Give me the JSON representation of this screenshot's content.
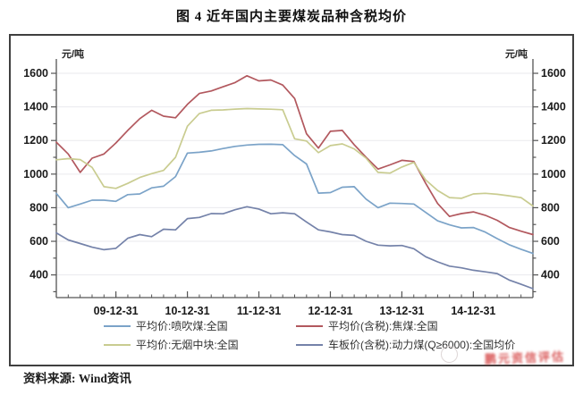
{
  "title": "图 4  近年国内主要煤炭品种含税均价",
  "source_note": "资料来源: Wind资讯",
  "watermark_text": "鹏元资信评估",
  "chart_data": {
    "type": "line",
    "title": "图 4 近年国内主要煤炭品种含税均价",
    "unit_label_left": "元/吨",
    "unit_label_right": "元/吨",
    "grid": "horizontal-only",
    "legend_position": "bottom-two-columns",
    "ylim": [
      265,
      1632
    ],
    "y_ticks": [
      400,
      600,
      800,
      1000,
      1200,
      1400,
      1600
    ],
    "x_tick_labels": [
      "09-12-31",
      "10-12-31",
      "11-12-31",
      "12-12-31",
      "13-12-31",
      "14-12-31"
    ],
    "x_months": [
      "2009-02",
      "2009-04",
      "2009-06",
      "2009-08",
      "2009-10",
      "2009-12",
      "2010-02",
      "2010-04",
      "2010-06",
      "2010-08",
      "2010-10",
      "2010-12",
      "2011-02",
      "2011-04",
      "2011-06",
      "2011-08",
      "2011-10",
      "2011-12",
      "2012-02",
      "2012-04",
      "2012-06",
      "2012-08",
      "2012-10",
      "2012-12",
      "2013-02",
      "2013-04",
      "2013-06",
      "2013-08",
      "2013-10",
      "2013-12",
      "2014-02",
      "2014-04",
      "2014-06",
      "2014-08",
      "2014-10",
      "2014-12",
      "2015-02",
      "2015-04",
      "2015-06",
      "2015-08",
      "2015-10"
    ],
    "series": [
      {
        "name": "平均价:喷吹煤:全国",
        "color": "#7ba3c8",
        "values": [
          885,
          800,
          822,
          845,
          845,
          838,
          878,
          882,
          918,
          928,
          985,
          1125,
          1130,
          1138,
          1152,
          1165,
          1173,
          1177,
          1178,
          1175,
          1110,
          1060,
          887,
          890,
          922,
          925,
          851,
          800,
          827,
          825,
          822,
          772,
          722,
          698,
          680,
          682,
          655,
          616,
          580,
          553,
          528
        ]
      },
      {
        "name": "平均价(含税):焦煤:全国",
        "color": "#b2585e",
        "values": [
          1190,
          1120,
          1010,
          1095,
          1120,
          1185,
          1260,
          1330,
          1380,
          1345,
          1335,
          1415,
          1480,
          1495,
          1520,
          1545,
          1585,
          1555,
          1560,
          1530,
          1450,
          1240,
          1155,
          1255,
          1260,
          1175,
          1100,
          1030,
          1055,
          1082,
          1075,
          945,
          825,
          748,
          765,
          775,
          755,
          725,
          683,
          660,
          640
        ]
      },
      {
        "name": "平均价:无烟中块:全国",
        "color": "#c9cc90",
        "values": [
          1085,
          1092,
          1086,
          1040,
          925,
          915,
          945,
          980,
          1003,
          1022,
          1100,
          1285,
          1360,
          1380,
          1382,
          1387,
          1390,
          1388,
          1386,
          1383,
          1210,
          1197,
          1128,
          1170,
          1180,
          1150,
          1095,
          1010,
          1006,
          1042,
          1070,
          965,
          903,
          860,
          856,
          882,
          886,
          880,
          871,
          860,
          810
        ]
      },
      {
        "name": "车板价(含税):动力煤(Q≥6000):全国均价",
        "color": "#7482a9",
        "values": [
          650,
          608,
          587,
          565,
          550,
          558,
          618,
          640,
          628,
          672,
          668,
          735,
          742,
          765,
          764,
          788,
          806,
          792,
          764,
          770,
          764,
          715,
          668,
          656,
          640,
          635,
          600,
          577,
          573,
          575,
          556,
          508,
          478,
          452,
          442,
          428,
          418,
          408,
          370,
          344,
          318
        ]
      }
    ]
  }
}
